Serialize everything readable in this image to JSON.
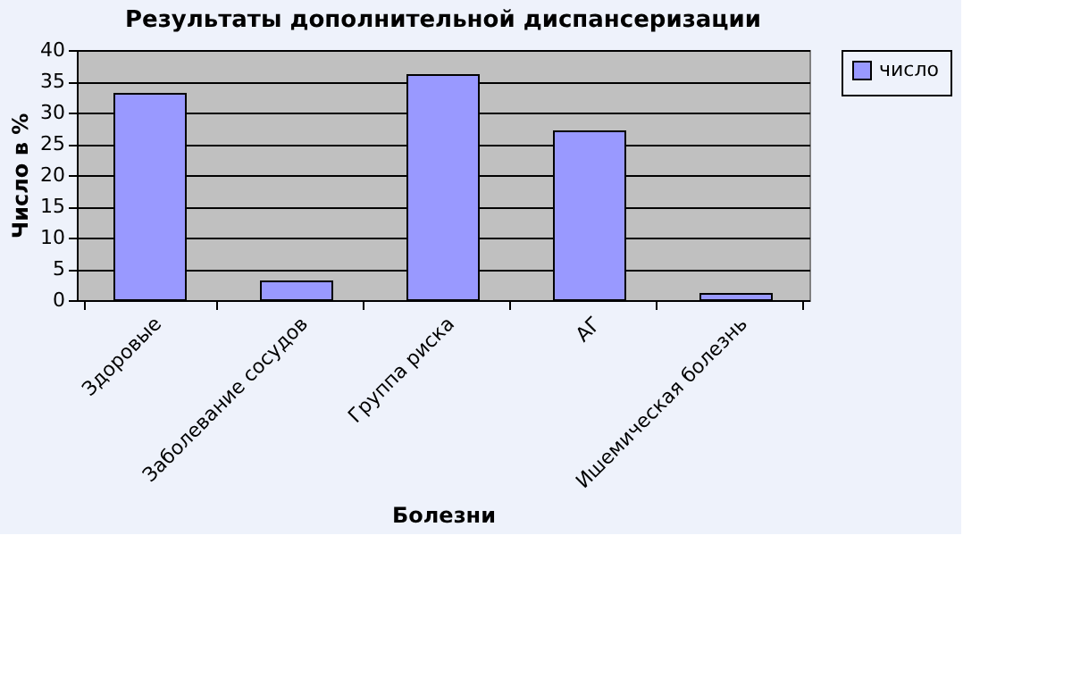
{
  "chart_data": {
    "type": "bar",
    "title": "Результаты дополнительной диспансеризации",
    "xlabel": "Болезни",
    "ylabel": "Число в %",
    "categories": [
      "Здоровые",
      "Заболевание сосудов",
      "Группа риска",
      "АГ",
      "Ишемическая болезнь"
    ],
    "series": [
      {
        "name": "число",
        "color": "#9999ff",
        "values": [
          33,
          3,
          36,
          27,
          1
        ]
      }
    ],
    "ylim": [
      0,
      40
    ],
    "yticks": [
      0,
      5,
      10,
      15,
      20,
      25,
      30,
      35,
      40
    ],
    "grid": "y",
    "legend": "right"
  }
}
